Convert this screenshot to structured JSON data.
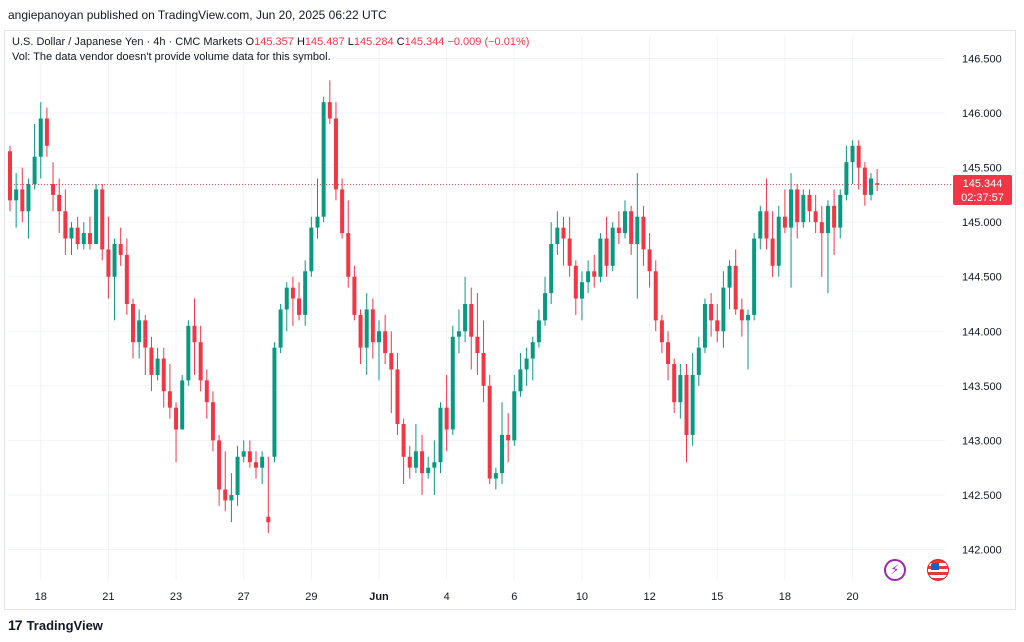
{
  "header": {
    "attribution": "angiepanoyan published on TradingView.com, Jun 20, 2025 06:22 UTC"
  },
  "legend": {
    "symbol": "U.S. Dollar / Japanese Yen · 4h · CMC Markets",
    "o_label": "O",
    "o_value": "145.357",
    "h_label": "H",
    "h_value": "145.487",
    "l_label": "L",
    "l_value": "145.284",
    "c_label": "C",
    "c_value": "145.344",
    "change": "−0.009 (−0.01%)",
    "volume_note": "Vol: The data vendor doesn't provide volume data for this symbol."
  },
  "price_label": {
    "price": "145.344",
    "countdown": "02:37:57"
  },
  "footer": {
    "brand": "TradingView",
    "logo_glyph": "17"
  },
  "colors": {
    "up": "#089981",
    "down": "#f23645",
    "grid": "#f0f3fa",
    "axis_text": "#131722",
    "current_line": "#f23645"
  },
  "icons": [
    "lightning-icon",
    "us-flag-icon"
  ],
  "chart_data": {
    "type": "candlestick",
    "timeframe": "4h",
    "ylim": [
      141.65,
      146.75
    ],
    "y_ticks": [
      "142.000",
      "142.500",
      "143.000",
      "143.500",
      "144.000",
      "144.500",
      "145.000",
      "145.500",
      "146.000",
      "146.500"
    ],
    "x_ticks": [
      "18",
      "21",
      "23",
      "27",
      "29",
      "Jun",
      "4",
      "6",
      "10",
      "12",
      "15",
      "18",
      "20"
    ],
    "x_tick_bar_index": [
      5,
      16,
      27,
      38,
      49,
      60,
      71,
      82,
      93,
      104,
      115,
      126,
      137
    ],
    "current_price": 145.344,
    "candles": [
      [
        145.65,
        145.7,
        145.1,
        145.2
      ],
      [
        145.2,
        145.45,
        144.95,
        145.3
      ],
      [
        145.3,
        145.5,
        145.0,
        145.1
      ],
      [
        145.1,
        145.4,
        144.85,
        145.35
      ],
      [
        145.35,
        145.9,
        145.3,
        145.6
      ],
      [
        145.6,
        146.1,
        145.4,
        145.95
      ],
      [
        145.95,
        146.05,
        145.6,
        145.7
      ],
      [
        145.35,
        145.55,
        145.1,
        145.25
      ],
      [
        145.25,
        145.4,
        144.9,
        145.1
      ],
      [
        145.1,
        145.3,
        144.7,
        144.85
      ],
      [
        144.85,
        145.0,
        144.7,
        144.95
      ],
      [
        144.95,
        145.05,
        144.75,
        144.8
      ],
      [
        144.8,
        145.0,
        144.75,
        144.9
      ],
      [
        144.9,
        145.05,
        144.75,
        144.8
      ],
      [
        144.8,
        145.35,
        144.8,
        145.3
      ],
      [
        145.3,
        145.35,
        144.65,
        144.75
      ],
      [
        144.75,
        145.05,
        144.3,
        144.5
      ],
      [
        144.5,
        144.85,
        144.1,
        144.8
      ],
      [
        144.8,
        144.95,
        144.6,
        144.7
      ],
      [
        144.7,
        144.85,
        144.15,
        144.25
      ],
      [
        144.25,
        144.3,
        143.75,
        143.9
      ],
      [
        143.9,
        144.2,
        143.75,
        144.1
      ],
      [
        144.1,
        144.15,
        143.6,
        143.85
      ],
      [
        143.85,
        143.95,
        143.45,
        143.6
      ],
      [
        143.6,
        143.85,
        143.55,
        143.75
      ],
      [
        143.75,
        143.85,
        143.3,
        143.45
      ],
      [
        143.45,
        143.7,
        143.2,
        143.3
      ],
      [
        143.3,
        143.35,
        142.8,
        143.1
      ],
      [
        143.1,
        143.6,
        143.1,
        143.55
      ],
      [
        143.55,
        144.1,
        143.5,
        144.05
      ],
      [
        144.05,
        144.3,
        143.6,
        143.9
      ],
      [
        143.9,
        144.05,
        143.45,
        143.55
      ],
      [
        143.55,
        143.65,
        143.2,
        143.35
      ],
      [
        143.35,
        143.45,
        142.9,
        143.0
      ],
      [
        143.0,
        143.05,
        142.4,
        142.55
      ],
      [
        142.55,
        142.9,
        142.35,
        142.45
      ],
      [
        142.45,
        142.7,
        142.25,
        142.5
      ],
      [
        142.5,
        142.95,
        142.4,
        142.85
      ],
      [
        142.85,
        143.0,
        142.8,
        142.9
      ],
      [
        142.9,
        143.0,
        142.75,
        142.8
      ],
      [
        142.8,
        142.9,
        142.65,
        142.75
      ],
      [
        142.75,
        142.9,
        142.6,
        142.85
      ],
      [
        142.3,
        142.85,
        142.15,
        142.25
      ],
      [
        142.85,
        143.9,
        142.8,
        143.85
      ],
      [
        143.85,
        144.25,
        143.8,
        144.2
      ],
      [
        144.2,
        144.45,
        144.0,
        144.4
      ],
      [
        144.4,
        144.5,
        144.05,
        144.3
      ],
      [
        144.3,
        144.45,
        144.1,
        144.15
      ],
      [
        144.15,
        144.65,
        144.05,
        144.55
      ],
      [
        144.55,
        145.05,
        144.5,
        144.95
      ],
      [
        144.95,
        145.4,
        144.85,
        145.05
      ],
      [
        145.05,
        146.15,
        145.0,
        146.1
      ],
      [
        146.1,
        146.3,
        145.9,
        145.95
      ],
      [
        145.95,
        146.1,
        145.2,
        145.3
      ],
      [
        145.3,
        145.4,
        144.85,
        144.9
      ],
      [
        144.9,
        145.2,
        144.4,
        144.5
      ],
      [
        144.5,
        144.6,
        144.1,
        144.15
      ],
      [
        144.15,
        144.2,
        143.7,
        143.85
      ],
      [
        143.85,
        144.35,
        143.6,
        144.2
      ],
      [
        144.2,
        144.3,
        143.75,
        143.9
      ],
      [
        143.9,
        144.1,
        143.55,
        144.0
      ],
      [
        144.0,
        144.15,
        143.7,
        143.8
      ],
      [
        143.8,
        144.0,
        143.25,
        143.65
      ],
      [
        143.65,
        143.8,
        143.05,
        143.15
      ],
      [
        143.15,
        143.2,
        142.6,
        142.85
      ],
      [
        142.85,
        142.95,
        142.65,
        142.75
      ],
      [
        142.75,
        143.15,
        142.7,
        142.9
      ],
      [
        142.9,
        143.05,
        142.5,
        142.7
      ],
      [
        142.7,
        142.85,
        142.65,
        142.75
      ],
      [
        142.75,
        143.0,
        142.5,
        142.8
      ],
      [
        142.8,
        143.35,
        142.7,
        143.3
      ],
      [
        143.3,
        143.6,
        142.9,
        143.1
      ],
      [
        143.1,
        144.05,
        143.05,
        143.95
      ],
      [
        143.95,
        144.2,
        143.8,
        144.0
      ],
      [
        144.0,
        144.5,
        143.9,
        144.25
      ],
      [
        144.25,
        144.4,
        143.65,
        143.95
      ],
      [
        143.95,
        144.35,
        143.6,
        143.8
      ],
      [
        143.8,
        144.1,
        143.35,
        143.5
      ],
      [
        143.5,
        143.6,
        142.6,
        142.65
      ],
      [
        142.65,
        142.75,
        142.55,
        142.7
      ],
      [
        142.7,
        143.35,
        142.6,
        143.05
      ],
      [
        143.05,
        143.25,
        142.8,
        143.0
      ],
      [
        143.0,
        143.6,
        142.95,
        143.45
      ],
      [
        143.45,
        143.8,
        143.4,
        143.65
      ],
      [
        143.65,
        143.85,
        143.5,
        143.75
      ],
      [
        143.75,
        143.95,
        143.55,
        143.9
      ],
      [
        143.9,
        144.2,
        143.85,
        144.1
      ],
      [
        144.1,
        144.5,
        144.05,
        144.35
      ],
      [
        144.35,
        145.0,
        144.25,
        144.8
      ],
      [
        144.8,
        145.1,
        144.7,
        144.95
      ],
      [
        144.95,
        145.05,
        144.6,
        144.85
      ],
      [
        144.85,
        145.05,
        144.5,
        144.6
      ],
      [
        144.6,
        144.65,
        144.15,
        144.3
      ],
      [
        144.3,
        144.55,
        144.1,
        144.45
      ],
      [
        144.45,
        144.65,
        144.35,
        144.55
      ],
      [
        144.55,
        144.7,
        144.4,
        144.5
      ],
      [
        144.5,
        144.9,
        144.45,
        144.85
      ],
      [
        144.85,
        145.05,
        144.5,
        144.6
      ],
      [
        144.6,
        145.0,
        144.55,
        144.95
      ],
      [
        144.95,
        145.1,
        144.8,
        144.9
      ],
      [
        144.9,
        145.2,
        144.85,
        145.1
      ],
      [
        145.1,
        145.15,
        144.7,
        144.8
      ],
      [
        144.8,
        145.45,
        144.3,
        145.05
      ],
      [
        145.05,
        145.15,
        144.6,
        144.75
      ],
      [
        144.75,
        144.9,
        144.4,
        144.55
      ],
      [
        144.55,
        144.65,
        144.0,
        144.1
      ],
      [
        144.1,
        144.15,
        143.8,
        143.9
      ],
      [
        143.9,
        144.0,
        143.55,
        143.7
      ],
      [
        143.7,
        143.75,
        143.25,
        143.35
      ],
      [
        143.35,
        143.7,
        143.2,
        143.6
      ],
      [
        143.6,
        143.7,
        142.8,
        143.05
      ],
      [
        143.05,
        143.8,
        142.95,
        143.6
      ],
      [
        143.6,
        143.95,
        143.5,
        143.85
      ],
      [
        143.85,
        144.3,
        143.8,
        144.25
      ],
      [
        144.25,
        144.35,
        143.95,
        144.1
      ],
      [
        144.1,
        144.25,
        143.9,
        144.0
      ],
      [
        144.0,
        144.55,
        143.85,
        144.4
      ],
      [
        144.4,
        144.65,
        144.2,
        144.6
      ],
      [
        144.6,
        144.75,
        144.15,
        144.2
      ],
      [
        144.2,
        144.3,
        143.95,
        144.1
      ],
      [
        144.1,
        144.2,
        143.65,
        144.15
      ],
      [
        144.15,
        144.9,
        144.1,
        144.85
      ],
      [
        144.85,
        145.15,
        144.75,
        145.1
      ],
      [
        145.1,
        145.4,
        144.75,
        144.85
      ],
      [
        144.85,
        145.1,
        144.5,
        144.6
      ],
      [
        144.6,
        145.15,
        144.5,
        145.05
      ],
      [
        145.05,
        145.3,
        144.9,
        144.95
      ],
      [
        144.95,
        145.45,
        144.4,
        145.3
      ],
      [
        145.3,
        145.35,
        144.85,
        145.0
      ],
      [
        145.0,
        145.3,
        144.95,
        145.25
      ],
      [
        145.25,
        145.3,
        145.0,
        145.1
      ],
      [
        145.1,
        145.25,
        144.9,
        145.0
      ],
      [
        145.0,
        145.15,
        144.5,
        144.9
      ],
      [
        144.9,
        145.2,
        144.35,
        145.15
      ],
      [
        145.15,
        145.3,
        144.7,
        144.95
      ],
      [
        144.95,
        145.3,
        144.85,
        145.25
      ],
      [
        145.25,
        145.7,
        145.2,
        145.55
      ],
      [
        145.55,
        145.75,
        145.35,
        145.7
      ],
      [
        145.7,
        145.75,
        145.3,
        145.5
      ],
      [
        145.5,
        145.55,
        145.15,
        145.25
      ],
      [
        145.25,
        145.45,
        145.2,
        145.4
      ],
      [
        145.357,
        145.487,
        145.284,
        145.344
      ]
    ]
  }
}
